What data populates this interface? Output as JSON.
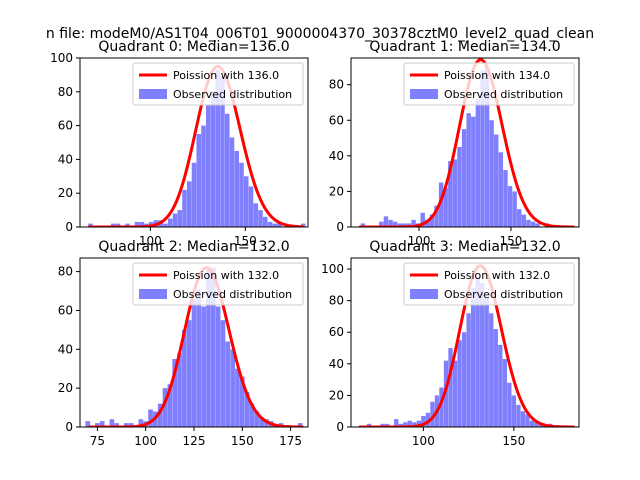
{
  "suptitle": "n file: modeM0/AS1T04_006T01_9000004370_30378cztM0_level2_quad_clean",
  "colors": {
    "poisson": "#ff0000",
    "observed": "#8080ff",
    "axes": "#000000"
  },
  "chart_data": [
    {
      "type": "bar",
      "title": "Quadrant 0: Median=136.0",
      "xlim": [
        63,
        183
      ],
      "ylim": [
        0,
        100
      ],
      "xticks": [
        100,
        150
      ],
      "yticks": [
        0,
        20,
        40,
        60,
        80,
        100
      ],
      "legend": [
        "Poission with 136.0",
        "Observed distribution"
      ],
      "poisson_mean": 136.0,
      "poisson_peak": 95,
      "bin_width": 2.4,
      "observed": [
        [
          68.5,
          2
        ],
        [
          80.5,
          2
        ],
        [
          83,
          2
        ],
        [
          85.5,
          1
        ],
        [
          88,
          2
        ],
        [
          90.5,
          1
        ],
        [
          93,
          3
        ],
        [
          95.5,
          3
        ],
        [
          98,
          2
        ],
        [
          100.5,
          3
        ],
        [
          103,
          4
        ],
        [
          105.5,
          4
        ],
        [
          108,
          2
        ],
        [
          110.5,
          5
        ],
        [
          113,
          8
        ],
        [
          115.5,
          10
        ],
        [
          118,
          22
        ],
        [
          120.5,
          27
        ],
        [
          123,
          38
        ],
        [
          125.5,
          55
        ],
        [
          128,
          60
        ],
        [
          130.5,
          72
        ],
        [
          133,
          80
        ],
        [
          135.5,
          93
        ],
        [
          138,
          89
        ],
        [
          140.5,
          67
        ],
        [
          143,
          53
        ],
        [
          145.5,
          45
        ],
        [
          148,
          38
        ],
        [
          150.5,
          30
        ],
        [
          153,
          24
        ],
        [
          155.5,
          14
        ],
        [
          158,
          10
        ],
        [
          160.5,
          6
        ],
        [
          163,
          3
        ],
        [
          165.5,
          2
        ],
        [
          168,
          3
        ],
        [
          180.5,
          2
        ]
      ]
    },
    {
      "type": "bar",
      "title": "Quadrant 1: Median=134.0",
      "xlim": [
        63,
        187
      ],
      "ylim": [
        0,
        95
      ],
      "xticks": [
        100,
        150
      ],
      "yticks": [
        0,
        20,
        40,
        60,
        80
      ],
      "legend": [
        "Poission with 134.0",
        "Observed distribution"
      ],
      "poisson_mean": 134.0,
      "poisson_peak": 94,
      "bin_width": 2.4,
      "observed": [
        [
          69.5,
          2
        ],
        [
          79.5,
          3
        ],
        [
          82,
          6
        ],
        [
          84.5,
          4
        ],
        [
          87,
          3
        ],
        [
          89.5,
          2
        ],
        [
          92,
          2
        ],
        [
          94.5,
          2
        ],
        [
          97,
          4
        ],
        [
          99.5,
          2
        ],
        [
          102,
          8
        ],
        [
          104.5,
          4
        ],
        [
          107,
          7
        ],
        [
          109.5,
          12
        ],
        [
          112,
          25
        ],
        [
          114.5,
          22
        ],
        [
          117,
          37
        ],
        [
          119.5,
          38
        ],
        [
          122,
          45
        ],
        [
          124.5,
          55
        ],
        [
          127,
          64
        ],
        [
          129.5,
          62
        ],
        [
          132,
          72
        ],
        [
          134.5,
          88
        ],
        [
          137,
          90
        ],
        [
          139.5,
          60
        ],
        [
          142,
          52
        ],
        [
          144.5,
          42
        ],
        [
          147,
          32
        ],
        [
          149.5,
          23
        ],
        [
          152,
          20
        ],
        [
          154.5,
          10
        ],
        [
          157,
          7
        ],
        [
          159.5,
          4
        ],
        [
          162,
          3
        ],
        [
          164.5,
          2
        ],
        [
          169.5,
          2
        ]
      ]
    },
    {
      "type": "bar",
      "title": "Quadrant 2: Median=132.0",
      "xlim": [
        66,
        184
      ],
      "ylim": [
        0,
        87
      ],
      "xticks": [
        75,
        100,
        125,
        150,
        175
      ],
      "yticks": [
        0,
        20,
        40,
        60,
        80
      ],
      "legend": [
        "Poission with 132.0",
        "Observed distribution"
      ],
      "poisson_mean": 132.0,
      "poisson_peak": 82,
      "bin_width": 2.4,
      "observed": [
        [
          70,
          3
        ],
        [
          75,
          2
        ],
        [
          77.5,
          3
        ],
        [
          82.5,
          4
        ],
        [
          85,
          2
        ],
        [
          90,
          2
        ],
        [
          92.5,
          2
        ],
        [
          97.5,
          4
        ],
        [
          100,
          3
        ],
        [
          102.5,
          9
        ],
        [
          105,
          8
        ],
        [
          107.5,
          12
        ],
        [
          110,
          20
        ],
        [
          112.5,
          22
        ],
        [
          115,
          35
        ],
        [
          117.5,
          38
        ],
        [
          120,
          50
        ],
        [
          122.5,
          55
        ],
        [
          125,
          66
        ],
        [
          127.5,
          71
        ],
        [
          130,
          62
        ],
        [
          132.5,
          81
        ],
        [
          135,
          82
        ],
        [
          137.5,
          62
        ],
        [
          140,
          55
        ],
        [
          142.5,
          44
        ],
        [
          145,
          40
        ],
        [
          147.5,
          30
        ],
        [
          150,
          26
        ],
        [
          152.5,
          18
        ],
        [
          155,
          12
        ],
        [
          157.5,
          8
        ],
        [
          160,
          5
        ],
        [
          162.5,
          4
        ],
        [
          165,
          3
        ],
        [
          170,
          2
        ],
        [
          172.5,
          1
        ],
        [
          180,
          2
        ]
      ]
    },
    {
      "type": "bar",
      "title": "Quadrant 3: Median=132.0",
      "xlim": [
        60,
        186
      ],
      "ylim": [
        0,
        107
      ],
      "xticks": [
        100,
        150
      ],
      "yticks": [
        0,
        20,
        40,
        60,
        80,
        100
      ],
      "legend": [
        "Poission with 132.0",
        "Observed distribution"
      ],
      "poisson_mean": 132.0,
      "poisson_peak": 102,
      "bin_width": 2.4,
      "observed": [
        [
          70,
          2
        ],
        [
          75,
          1
        ],
        [
          77.5,
          2
        ],
        [
          80,
          2
        ],
        [
          82.5,
          1
        ],
        [
          85,
          5
        ],
        [
          87.5,
          2
        ],
        [
          90,
          3
        ],
        [
          92.5,
          4
        ],
        [
          95,
          3
        ],
        [
          97.5,
          4
        ],
        [
          100,
          7
        ],
        [
          102.5,
          9
        ],
        [
          105,
          16
        ],
        [
          107.5,
          20
        ],
        [
          110,
          25
        ],
        [
          112.5,
          42
        ],
        [
          115,
          50
        ],
        [
          117.5,
          42
        ],
        [
          120,
          55
        ],
        [
          122.5,
          60
        ],
        [
          125,
          72
        ],
        [
          127.5,
          88
        ],
        [
          130,
          95
        ],
        [
          132.5,
          91
        ],
        [
          135,
          82
        ],
        [
          137.5,
          72
        ],
        [
          140,
          62
        ],
        [
          142.5,
          52
        ],
        [
          145,
          43
        ],
        [
          147.5,
          28
        ],
        [
          150,
          20
        ],
        [
          152.5,
          14
        ],
        [
          155,
          10
        ],
        [
          157.5,
          8
        ],
        [
          160,
          4
        ],
        [
          162.5,
          3
        ],
        [
          165,
          2
        ],
        [
          170,
          2
        ],
        [
          175,
          1
        ]
      ]
    }
  ]
}
